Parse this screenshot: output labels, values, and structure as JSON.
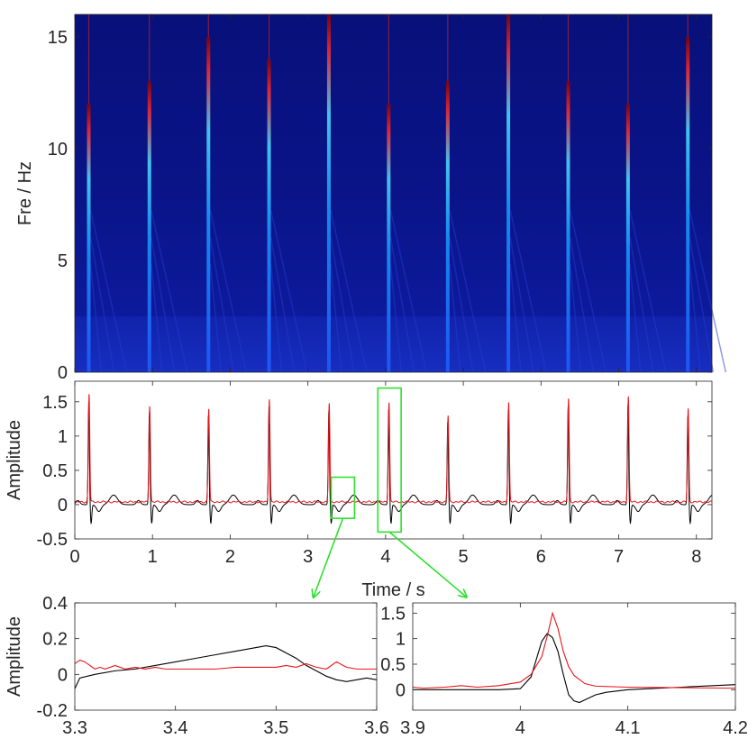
{
  "chart_data": [
    {
      "type": "heatmap",
      "panel": "spectrogram",
      "ylabel": "Fre / Hz",
      "xlim": [
        0,
        8.2
      ],
      "ylim": [
        0,
        16
      ],
      "yticks": [
        0,
        5,
        10,
        15
      ],
      "colormap": [
        "#00008f",
        "#0000ff",
        "#00ffff",
        "#ff0000",
        "#800000"
      ],
      "background_color": "#0a1488",
      "beat_times": [
        0.18,
        0.96,
        1.72,
        2.5,
        3.27,
        4.04,
        4.8,
        5.58,
        6.35,
        7.12,
        7.89
      ],
      "beat_peak_freqs": [
        12,
        13,
        15,
        14,
        16,
        12,
        13,
        16,
        13,
        12,
        15
      ]
    },
    {
      "type": "line",
      "panel": "signal",
      "xlabel": "Time / s",
      "ylabel": "Amplitude",
      "xlim": [
        0,
        8.2
      ],
      "ylim": [
        -0.5,
        1.8
      ],
      "xticks": [
        0,
        1,
        2,
        3,
        4,
        5,
        6,
        7,
        8
      ],
      "yticks": [
        -0.5,
        0,
        0.5,
        1,
        1.5
      ],
      "beat_times": [
        0.18,
        0.96,
        1.72,
        2.5,
        3.27,
        4.04,
        4.8,
        5.58,
        6.35,
        7.12,
        7.89
      ],
      "peak_values": [
        1.62,
        1.45,
        1.4,
        1.55,
        1.48,
        1.5,
        1.3,
        1.5,
        1.55,
        1.58,
        1.4
      ],
      "series": [
        {
          "color": "#000000"
        },
        {
          "color": "#e8141c"
        }
      ],
      "highlight_windows": [
        {
          "x": [
            3.3,
            3.6
          ],
          "y": [
            -0.2,
            0.4
          ]
        },
        {
          "x": [
            3.9,
            4.2
          ],
          "y": [
            -0.4,
            1.7
          ]
        }
      ],
      "highlight_color": "#2ee02e"
    },
    {
      "type": "line",
      "panel": "zoom-left",
      "ylabel": "Amplitude",
      "xlim": [
        3.3,
        3.6
      ],
      "ylim": [
        -0.2,
        0.4
      ],
      "xticks": [
        3.3,
        3.4,
        3.5,
        3.6
      ],
      "yticks": [
        -0.2,
        0,
        0.2,
        0.4
      ],
      "series": [
        {
          "color": "#000000",
          "x": [
            3.3,
            3.305,
            3.32,
            3.34,
            3.36,
            3.38,
            3.4,
            3.42,
            3.44,
            3.46,
            3.48,
            3.49,
            3.5,
            3.51,
            3.52,
            3.53,
            3.54,
            3.55,
            3.56,
            3.57,
            3.58,
            3.59,
            3.6
          ],
          "y": [
            -0.08,
            -0.02,
            0.0,
            0.02,
            0.03,
            0.05,
            0.07,
            0.09,
            0.11,
            0.13,
            0.15,
            0.16,
            0.15,
            0.12,
            0.09,
            0.05,
            0.02,
            -0.01,
            -0.03,
            -0.04,
            -0.03,
            -0.02,
            -0.03
          ]
        },
        {
          "color": "#e8141c",
          "x": [
            3.3,
            3.305,
            3.31,
            3.315,
            3.32,
            3.325,
            3.33,
            3.34,
            3.35,
            3.36,
            3.37,
            3.38,
            3.39,
            3.4,
            3.42,
            3.44,
            3.46,
            3.48,
            3.5,
            3.51,
            3.52,
            3.53,
            3.54,
            3.55,
            3.56,
            3.57,
            3.58,
            3.6
          ],
          "y": [
            0.06,
            0.08,
            0.07,
            0.05,
            0.03,
            0.04,
            0.03,
            0.05,
            0.03,
            0.04,
            0.03,
            0.04,
            0.03,
            0.03,
            0.03,
            0.03,
            0.04,
            0.04,
            0.04,
            0.05,
            0.04,
            0.06,
            0.04,
            0.03,
            0.07,
            0.04,
            0.03,
            0.03
          ]
        }
      ]
    },
    {
      "type": "line",
      "panel": "zoom-right",
      "xlim": [
        3.9,
        4.2
      ],
      "ylim": [
        -0.4,
        1.7
      ],
      "xticks": [
        3.9,
        4,
        4.1,
        4.2
      ],
      "yticks": [
        0,
        0.5,
        1,
        1.5
      ],
      "series": [
        {
          "color": "#000000",
          "x": [
            3.9,
            3.95,
            3.98,
            4.0,
            4.01,
            4.015,
            4.02,
            4.025,
            4.03,
            4.035,
            4.04,
            4.045,
            4.05,
            4.055,
            4.06,
            4.07,
            4.08,
            4.1,
            4.15,
            4.2
          ],
          "y": [
            0.0,
            0.0,
            0.0,
            0.02,
            0.25,
            0.6,
            0.95,
            1.1,
            1.02,
            0.75,
            0.3,
            -0.1,
            -0.22,
            -0.25,
            -0.2,
            -0.1,
            -0.05,
            0.0,
            0.05,
            0.1
          ]
        },
        {
          "color": "#e8141c",
          "x": [
            3.9,
            3.91,
            3.93,
            3.945,
            3.96,
            3.98,
            4.0,
            4.01,
            4.02,
            4.025,
            4.03,
            4.035,
            4.04,
            4.045,
            4.05,
            4.06,
            4.07,
            4.1,
            4.15,
            4.2
          ],
          "y": [
            0.05,
            0.03,
            0.05,
            0.08,
            0.05,
            0.08,
            0.15,
            0.3,
            0.65,
            1.05,
            1.5,
            1.2,
            0.75,
            0.45,
            0.28,
            0.12,
            0.07,
            0.05,
            0.04,
            0.03
          ]
        }
      ]
    }
  ],
  "annotations": {
    "arrow_color": "#2ee02e"
  }
}
